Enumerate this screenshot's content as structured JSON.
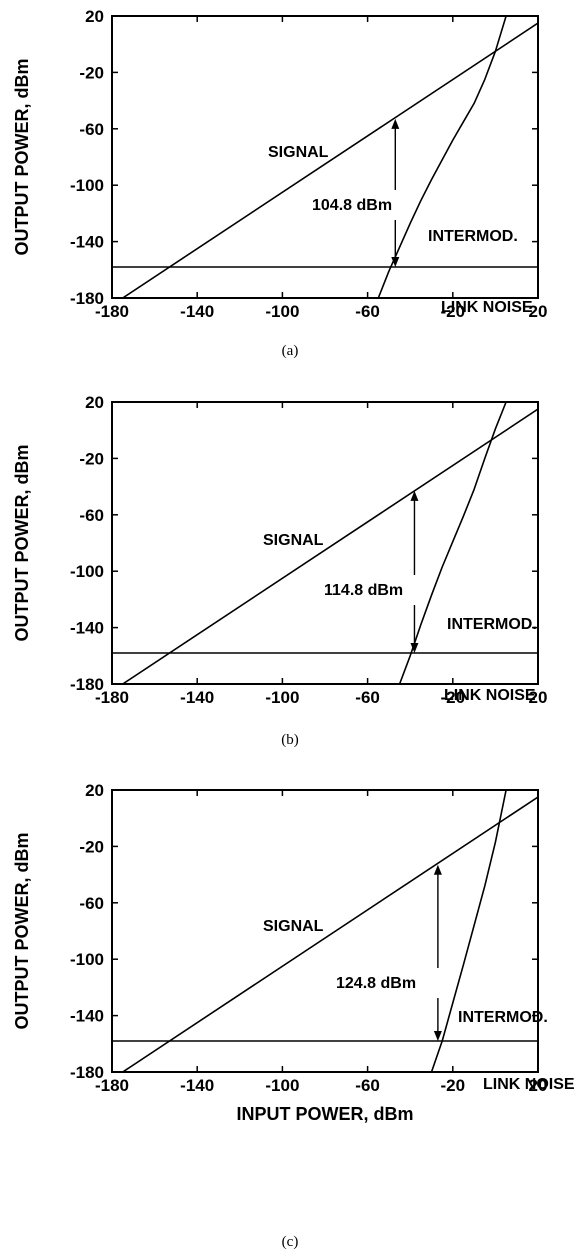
{
  "chart_data": [
    {
      "type": "line",
      "panel_label": "(a)",
      "xlabel": "",
      "ylabel": "OUTPUT POWER, dBm",
      "xlim": [
        -180,
        20
      ],
      "ylim": [
        -180,
        20
      ],
      "x_ticks": [
        -180,
        -140,
        -100,
        -60,
        -20,
        20
      ],
      "y_ticks": [
        20,
        -20,
        -60,
        -100,
        -140,
        -180
      ],
      "x_tick_labels": [
        "-180",
        "-140",
        "-100",
        "-60",
        "-20",
        "20"
      ],
      "y_tick_labels": [
        "20",
        "-20",
        "-60",
        "-100",
        "-140",
        "-180"
      ],
      "grid": false,
      "series": [
        {
          "name": "SIGNAL",
          "x": [
            -175,
            20
          ],
          "y": [
            -180,
            15
          ]
        },
        {
          "name": "INTERMOD.",
          "x": [
            -55,
            -50,
            -45,
            -40,
            -35,
            -30,
            -25,
            -20,
            -15,
            -10,
            -5,
            0,
            5
          ],
          "y": [
            -180,
            -161,
            -144,
            -127,
            -111,
            -96,
            -82,
            -68,
            -55,
            -42,
            -25,
            -5,
            20
          ]
        },
        {
          "name": "LINK NOISE",
          "x": [
            -180,
            20
          ],
          "y": [
            -158,
            -158
          ]
        }
      ],
      "annotations": [
        {
          "text": "104.8 dBm",
          "arrow_x": -47,
          "arrow_y_top": -53,
          "arrow_y_bottom": -158
        }
      ]
    },
    {
      "type": "line",
      "panel_label": "(b)",
      "xlabel": "",
      "ylabel": "OUTPUT POWER, dBm",
      "xlim": [
        -180,
        20
      ],
      "ylim": [
        -180,
        20
      ],
      "x_ticks": [
        -180,
        -140,
        -100,
        -60,
        -20,
        20
      ],
      "y_ticks": [
        20,
        -20,
        -60,
        -100,
        -140,
        -180
      ],
      "x_tick_labels": [
        "-180",
        "-140",
        "-100",
        "-60",
        "-20",
        "20"
      ],
      "y_tick_labels": [
        "20",
        "-20",
        "-60",
        "-100",
        "-140",
        "-180"
      ],
      "grid": false,
      "series": [
        {
          "name": "SIGNAL",
          "x": [
            -175,
            20
          ],
          "y": [
            -180,
            15
          ]
        },
        {
          "name": "INTERMOD.",
          "x": [
            -45,
            -40,
            -35,
            -30,
            -25,
            -20,
            -15,
            -10,
            -5,
            0,
            5
          ],
          "y": [
            -180,
            -160,
            -138,
            -117,
            -97,
            -79,
            -61,
            -42,
            -20,
            1,
            20
          ]
        },
        {
          "name": "LINK NOISE",
          "x": [
            -180,
            20
          ],
          "y": [
            -158,
            -158
          ]
        }
      ],
      "annotations": [
        {
          "text": "114.8 dBm",
          "arrow_x": -38,
          "arrow_y_top": -43,
          "arrow_y_bottom": -158
        }
      ]
    },
    {
      "type": "line",
      "panel_label": "(c)",
      "xlabel": "INPUT POWER, dBm",
      "ylabel": "OUTPUT POWER, dBm",
      "xlim": [
        -180,
        20
      ],
      "ylim": [
        -180,
        20
      ],
      "x_ticks": [
        -180,
        -140,
        -100,
        -60,
        -20,
        20
      ],
      "y_ticks": [
        20,
        -20,
        -60,
        -100,
        -140,
        -180
      ],
      "x_tick_labels": [
        "-180",
        "-140",
        "-100",
        "-60",
        "-20",
        "20"
      ],
      "y_tick_labels": [
        "20",
        "-20",
        "-60",
        "-100",
        "-140",
        "-180"
      ],
      "grid": false,
      "series": [
        {
          "name": "SIGNAL",
          "x": [
            -175,
            20
          ],
          "y": [
            -180,
            15
          ]
        },
        {
          "name": "INTERMOD.",
          "x": [
            -30,
            -25,
            -20,
            -15,
            -10,
            -5,
            0,
            5
          ],
          "y": [
            -180,
            -158,
            -131,
            -104,
            -76,
            -48,
            -17,
            20
          ]
        },
        {
          "name": "LINK NOISE",
          "x": [
            -180,
            20
          ],
          "y": [
            -158,
            -158
          ]
        }
      ],
      "annotations": [
        {
          "text": "124.8 dBm",
          "arrow_x": -27,
          "arrow_y_top": -33,
          "arrow_y_bottom": -158
        }
      ]
    }
  ]
}
